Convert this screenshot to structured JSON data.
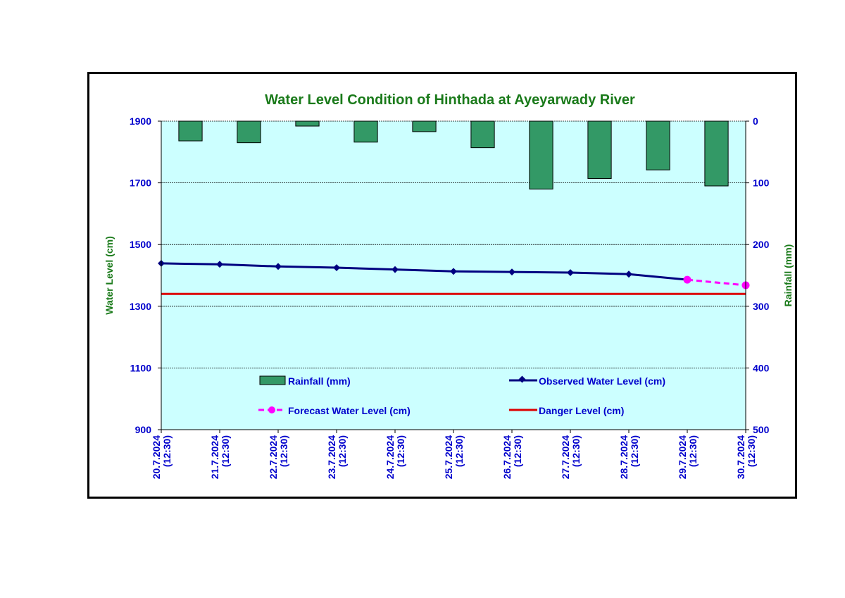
{
  "chart_data": {
    "type": "bar+line",
    "title": "Water Level Condition of Hinthada at Ayeyarwady River",
    "ylabel_left": "Water Level (cm)",
    "ylabel_right": "Rainfall (mm)",
    "y_left_range": [
      900,
      1900
    ],
    "y_left_ticks": [
      "1900",
      "1700",
      "1500",
      "1300",
      "1100",
      "900"
    ],
    "y_right_range": [
      0,
      500
    ],
    "y_right_reversed": true,
    "y_right_ticks": [
      "0",
      "100",
      "200",
      "300",
      "400",
      "500"
    ],
    "grid": true,
    "x_labels": [
      [
        "20.7.2024",
        "(12:30)"
      ],
      [
        "21.7.2024",
        "(12:30)"
      ],
      [
        "22.7.2024",
        "(12:30)"
      ],
      [
        "23.7.2024",
        "(12:30)"
      ],
      [
        "24.7.2024",
        "(12:30)"
      ],
      [
        "25.7.2024",
        "(12:30)"
      ],
      [
        "26.7.2024",
        "(12:30)"
      ],
      [
        "27.7.2024",
        "(12:30)"
      ],
      [
        "28.7.2024",
        "(12:30)"
      ],
      [
        "29.7.2024",
        "(12:30)"
      ],
      [
        "30.7.2024",
        "(12:30)"
      ]
    ],
    "rainfall": [
      32,
      35,
      8,
      34,
      17,
      43,
      110,
      93,
      79,
      105
    ],
    "observed": [
      1439,
      1436,
      1429,
      1425,
      1419,
      1413,
      1411,
      1409,
      1404,
      1386
    ],
    "forecast_x": [
      9,
      10
    ],
    "forecast": [
      1386,
      1368
    ],
    "danger_level": 1340,
    "legend": {
      "rainfall": "Rainfall (mm)",
      "observed": "Observed Water Level (cm)",
      "forecast": "Forecast Water Level (cm)",
      "danger": "Danger Level (cm)"
    },
    "colors": {
      "plot_bg": "#ccffff",
      "rainfall": "#339966",
      "observed": "#000080",
      "forecast": "#ff00ff",
      "danger": "#dd0000",
      "title": "#1a7a1a",
      "ticks": "#0000cc"
    }
  }
}
